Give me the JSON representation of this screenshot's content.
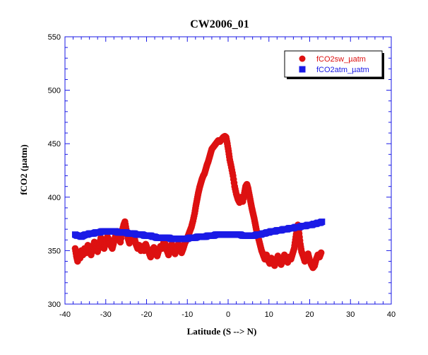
{
  "chart_data": {
    "type": "scatter",
    "title": "CW2006_01",
    "xlabel": "Latitude (S --> N)",
    "ylabel": "fCO2 (µatm)",
    "xlim": [
      -40,
      40
    ],
    "ylim": [
      300,
      550
    ],
    "x_ticks": [
      "-40",
      "-30",
      "-20",
      "-10",
      "0",
      "10",
      "20",
      "30",
      "40"
    ],
    "y_ticks": [
      "300",
      "350",
      "400",
      "450",
      "500",
      "550"
    ],
    "x_tick_values": [
      -40,
      -30,
      -20,
      -10,
      0,
      10,
      20,
      30,
      40
    ],
    "y_tick_values": [
      300,
      350,
      400,
      450,
      500,
      550
    ],
    "grid": false,
    "legend_position": "top-right",
    "series": [
      {
        "name": "fCO2sw_µatm",
        "color": "#dd1111",
        "marker": "circle",
        "points": [
          [
            -37.5,
            352
          ],
          [
            -37.2,
            345
          ],
          [
            -36.9,
            340
          ],
          [
            -36.6,
            348
          ],
          [
            -36.3,
            343
          ],
          [
            -36.0,
            350
          ],
          [
            -35.6,
            346
          ],
          [
            -35.2,
            352
          ],
          [
            -34.8,
            348
          ],
          [
            -34.4,
            355
          ],
          [
            -34.0,
            350
          ],
          [
            -33.6,
            346
          ],
          [
            -33.2,
            352
          ],
          [
            -32.8,
            358
          ],
          [
            -32.4,
            354
          ],
          [
            -32.0,
            349
          ],
          [
            -31.6,
            355
          ],
          [
            -31.2,
            362
          ],
          [
            -30.8,
            357
          ],
          [
            -30.4,
            352
          ],
          [
            -30.0,
            358
          ],
          [
            -29.6,
            363
          ],
          [
            -29.2,
            360
          ],
          [
            -28.8,
            355
          ],
          [
            -28.4,
            352
          ],
          [
            -28.0,
            358
          ],
          [
            -27.6,
            364
          ],
          [
            -27.2,
            368
          ],
          [
            -26.8,
            362
          ],
          [
            -26.4,
            358
          ],
          [
            -26.0,
            368
          ],
          [
            -25.6,
            374
          ],
          [
            -25.3,
            377
          ],
          [
            -25.0,
            370
          ],
          [
            -24.6,
            362
          ],
          [
            -24.2,
            357
          ],
          [
            -23.8,
            360
          ],
          [
            -23.4,
            366
          ],
          [
            -23.0,
            362
          ],
          [
            -22.6,
            356
          ],
          [
            -22.2,
            352
          ],
          [
            -21.8,
            355
          ],
          [
            -21.4,
            350
          ],
          [
            -21.0,
            354
          ],
          [
            -20.6,
            350
          ],
          [
            -20.2,
            356
          ],
          [
            -19.8,
            352
          ],
          [
            -19.4,
            348
          ],
          [
            -19.0,
            344
          ],
          [
            -18.6,
            350
          ],
          [
            -18.2,
            353
          ],
          [
            -17.8,
            348
          ],
          [
            -17.4,
            345
          ],
          [
            -17.0,
            350
          ],
          [
            -16.6,
            354
          ],
          [
            -16.2,
            352
          ],
          [
            -15.8,
            358
          ],
          [
            -15.4,
            356
          ],
          [
            -15.0,
            350
          ],
          [
            -14.6,
            346
          ],
          [
            -14.2,
            352
          ],
          [
            -13.8,
            356
          ],
          [
            -13.4,
            350
          ],
          [
            -13.0,
            347
          ],
          [
            -12.6,
            352
          ],
          [
            -12.2,
            356
          ],
          [
            -11.8,
            352
          ],
          [
            -11.4,
            348
          ],
          [
            -11.0,
            352
          ],
          [
            -10.6,
            357
          ],
          [
            -10.2,
            360
          ],
          [
            -9.8,
            364
          ],
          [
            -9.4,
            368
          ],
          [
            -9.0,
            372
          ],
          [
            -8.6,
            378
          ],
          [
            -8.2,
            385
          ],
          [
            -7.9,
            392
          ],
          [
            -7.6,
            398
          ],
          [
            -7.3,
            404
          ],
          [
            -7.0,
            409
          ],
          [
            -6.7,
            413
          ],
          [
            -6.4,
            417
          ],
          [
            -6.1,
            420
          ],
          [
            -5.8,
            422
          ],
          [
            -5.5,
            426
          ],
          [
            -5.2,
            430
          ],
          [
            -4.9,
            433
          ],
          [
            -4.6,
            437
          ],
          [
            -4.3,
            441
          ],
          [
            -4.0,
            445
          ],
          [
            -3.6,
            447
          ],
          [
            -3.2,
            449
          ],
          [
            -2.8,
            451
          ],
          [
            -2.4,
            453
          ],
          [
            -2.0,
            452
          ],
          [
            -1.6,
            454
          ],
          [
            -1.2,
            456
          ],
          [
            -0.8,
            457
          ],
          [
            -0.5,
            456
          ],
          [
            -0.2,
            450
          ],
          [
            0.1,
            443
          ],
          [
            0.4,
            435
          ],
          [
            0.8,
            428
          ],
          [
            1.2,
            420
          ],
          [
            1.6,
            410
          ],
          [
            2.0,
            403
          ],
          [
            2.4,
            398
          ],
          [
            2.8,
            395
          ],
          [
            3.2,
            400
          ],
          [
            3.6,
            396
          ],
          [
            4.0,
            404
          ],
          [
            4.3,
            410
          ],
          [
            4.6,
            412
          ],
          [
            4.9,
            408
          ],
          [
            5.2,
            402
          ],
          [
            5.5,
            396
          ],
          [
            5.8,
            390
          ],
          [
            6.1,
            385
          ],
          [
            6.4,
            380
          ],
          [
            6.7,
            374
          ],
          [
            7.0,
            368
          ],
          [
            7.4,
            362
          ],
          [
            7.8,
            356
          ],
          [
            8.2,
            350
          ],
          [
            8.6,
            346
          ],
          [
            9.0,
            342
          ],
          [
            9.4,
            346
          ],
          [
            9.8,
            341
          ],
          [
            10.2,
            338
          ],
          [
            10.6,
            343
          ],
          [
            11.0,
            339
          ],
          [
            11.4,
            336
          ],
          [
            11.8,
            341
          ],
          [
            12.2,
            345
          ],
          [
            12.6,
            340
          ],
          [
            13.0,
            337
          ],
          [
            13.4,
            341
          ],
          [
            13.8,
            346
          ],
          [
            14.2,
            343
          ],
          [
            14.6,
            339
          ],
          [
            15.0,
            344
          ],
          [
            15.4,
            342
          ],
          [
            15.8,
            347
          ],
          [
            16.2,
            352
          ],
          [
            16.5,
            360
          ],
          [
            16.8,
            368
          ],
          [
            17.1,
            374
          ],
          [
            17.4,
            366
          ],
          [
            17.7,
            356
          ],
          [
            18.0,
            349
          ],
          [
            18.4,
            345
          ],
          [
            18.8,
            340
          ],
          [
            19.2,
            343
          ],
          [
            19.6,
            347
          ],
          [
            20.0,
            341
          ],
          [
            20.4,
            337
          ],
          [
            20.8,
            334
          ],
          [
            21.2,
            336
          ],
          [
            21.6,
            342
          ],
          [
            22.0,
            346
          ],
          [
            22.4,
            344
          ],
          [
            22.8,
            348
          ]
        ]
      },
      {
        "name": "fCO2atm_µatm",
        "color": "#1a1ae6",
        "marker": "square",
        "points": [
          [
            -37.5,
            365
          ],
          [
            -37.0,
            364
          ],
          [
            -36.5,
            364
          ],
          [
            -36.0,
            363
          ],
          [
            -35.5,
            364
          ],
          [
            -35.0,
            365
          ],
          [
            -34.5,
            365
          ],
          [
            -34.0,
            366
          ],
          [
            -33.5,
            366
          ],
          [
            -33.0,
            366
          ],
          [
            -32.5,
            367
          ],
          [
            -32.0,
            367
          ],
          [
            -31.5,
            367
          ],
          [
            -31.0,
            368
          ],
          [
            -30.5,
            368
          ],
          [
            -30.0,
            368
          ],
          [
            -29.5,
            368
          ],
          [
            -29.0,
            368
          ],
          [
            -28.5,
            368
          ],
          [
            -28.0,
            368
          ],
          [
            -27.5,
            368
          ],
          [
            -27.0,
            367
          ],
          [
            -26.5,
            367
          ],
          [
            -26.0,
            367
          ],
          [
            -25.5,
            367
          ],
          [
            -25.0,
            367
          ],
          [
            -24.5,
            366
          ],
          [
            -24.0,
            366
          ],
          [
            -23.5,
            366
          ],
          [
            -23.0,
            366
          ],
          [
            -22.5,
            365
          ],
          [
            -22.0,
            365
          ],
          [
            -21.5,
            365
          ],
          [
            -21.0,
            365
          ],
          [
            -20.5,
            364
          ],
          [
            -20.0,
            364
          ],
          [
            -19.5,
            364
          ],
          [
            -19.0,
            364
          ],
          [
            -18.5,
            363
          ],
          [
            -18.0,
            363
          ],
          [
            -17.5,
            362
          ],
          [
            -17.0,
            362
          ],
          [
            -16.5,
            362
          ],
          [
            -16.0,
            362
          ],
          [
            -15.5,
            362
          ],
          [
            -15.0,
            362
          ],
          [
            -14.5,
            362
          ],
          [
            -14.0,
            361
          ],
          [
            -13.5,
            361
          ],
          [
            -13.0,
            361
          ],
          [
            -12.5,
            361
          ],
          [
            -12.0,
            361
          ],
          [
            -11.5,
            361
          ],
          [
            -11.0,
            361
          ],
          [
            -10.5,
            361
          ],
          [
            -10.0,
            361
          ],
          [
            -9.5,
            362
          ],
          [
            -9.0,
            362
          ],
          [
            -8.5,
            362
          ],
          [
            -8.0,
            362
          ],
          [
            -7.5,
            363
          ],
          [
            -7.0,
            363
          ],
          [
            -6.5,
            363
          ],
          [
            -6.0,
            363
          ],
          [
            -5.5,
            363
          ],
          [
            -5.0,
            364
          ],
          [
            -4.5,
            364
          ],
          [
            -4.0,
            364
          ],
          [
            -3.5,
            364
          ],
          [
            -3.0,
            365
          ],
          [
            -2.5,
            365
          ],
          [
            -2.0,
            365
          ],
          [
            -1.5,
            365
          ],
          [
            -1.0,
            365
          ],
          [
            -0.5,
            365
          ],
          [
            0.0,
            365
          ],
          [
            0.5,
            365
          ],
          [
            1.0,
            365
          ],
          [
            1.5,
            365
          ],
          [
            2.0,
            365
          ],
          [
            2.5,
            365
          ],
          [
            3.0,
            365
          ],
          [
            3.5,
            364
          ],
          [
            4.0,
            364
          ],
          [
            4.5,
            364
          ],
          [
            5.0,
            364
          ],
          [
            5.5,
            364
          ],
          [
            6.0,
            364
          ],
          [
            6.5,
            364
          ],
          [
            7.0,
            365
          ],
          [
            7.5,
            365
          ],
          [
            8.0,
            365
          ],
          [
            8.5,
            366
          ],
          [
            9.0,
            366
          ],
          [
            9.5,
            367
          ],
          [
            10.0,
            367
          ],
          [
            10.5,
            368
          ],
          [
            11.0,
            368
          ],
          [
            11.5,
            368
          ],
          [
            12.0,
            369
          ],
          [
            12.5,
            369
          ],
          [
            13.0,
            369
          ],
          [
            13.5,
            370
          ],
          [
            14.0,
            370
          ],
          [
            14.5,
            370
          ],
          [
            15.0,
            371
          ],
          [
            15.5,
            371
          ],
          [
            16.0,
            371
          ],
          [
            16.5,
            372
          ],
          [
            17.0,
            372
          ],
          [
            17.5,
            372
          ],
          [
            18.0,
            373
          ],
          [
            18.5,
            373
          ],
          [
            19.0,
            373
          ],
          [
            19.5,
            374
          ],
          [
            20.0,
            374
          ],
          [
            20.5,
            374
          ],
          [
            21.0,
            375
          ],
          [
            21.5,
            375
          ],
          [
            22.0,
            376
          ],
          [
            22.5,
            376
          ],
          [
            23.0,
            377
          ]
        ]
      }
    ]
  }
}
